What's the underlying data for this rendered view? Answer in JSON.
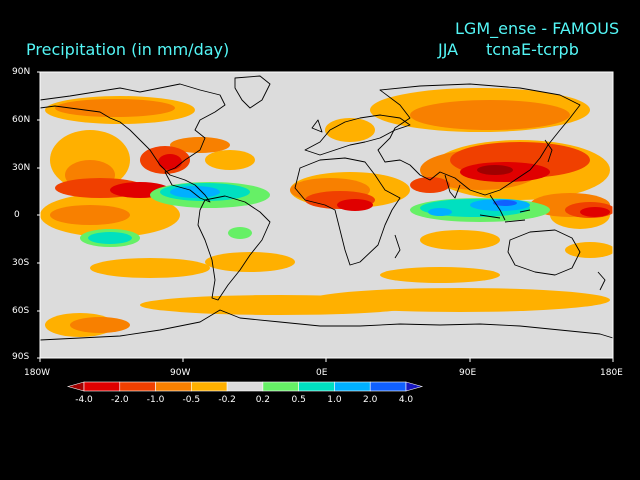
{
  "header": {
    "title_right": "LGM_ense - FAMOUS",
    "title_left": "Precipitation (in mm/day)",
    "season": "JJA",
    "experiment": "tcnaE-tcrpb"
  },
  "axes": {
    "lat_ticks": [
      "90N",
      "60N",
      "30N",
      "0",
      "30S",
      "60S",
      "90S"
    ],
    "lon_ticks": [
      "180W",
      "90W",
      "0E",
      "90E",
      "180E"
    ]
  },
  "colorbar": {
    "labels": [
      "-4.0",
      "-2.0",
      "-1.0",
      "-0.5",
      "-0.2",
      "0.2",
      "0.5",
      "1.0",
      "2.0",
      "4.0"
    ],
    "colors": [
      "#a00000",
      "#e00000",
      "#f04000",
      "#f88000",
      "#ffb000",
      "#dcdcdc",
      "#66f066",
      "#00e0c0",
      "#00b0ff",
      "#1060ff",
      "#1818c0"
    ]
  },
  "map": {
    "background": "#dcdcdc",
    "coastline_color": "#000000"
  }
}
